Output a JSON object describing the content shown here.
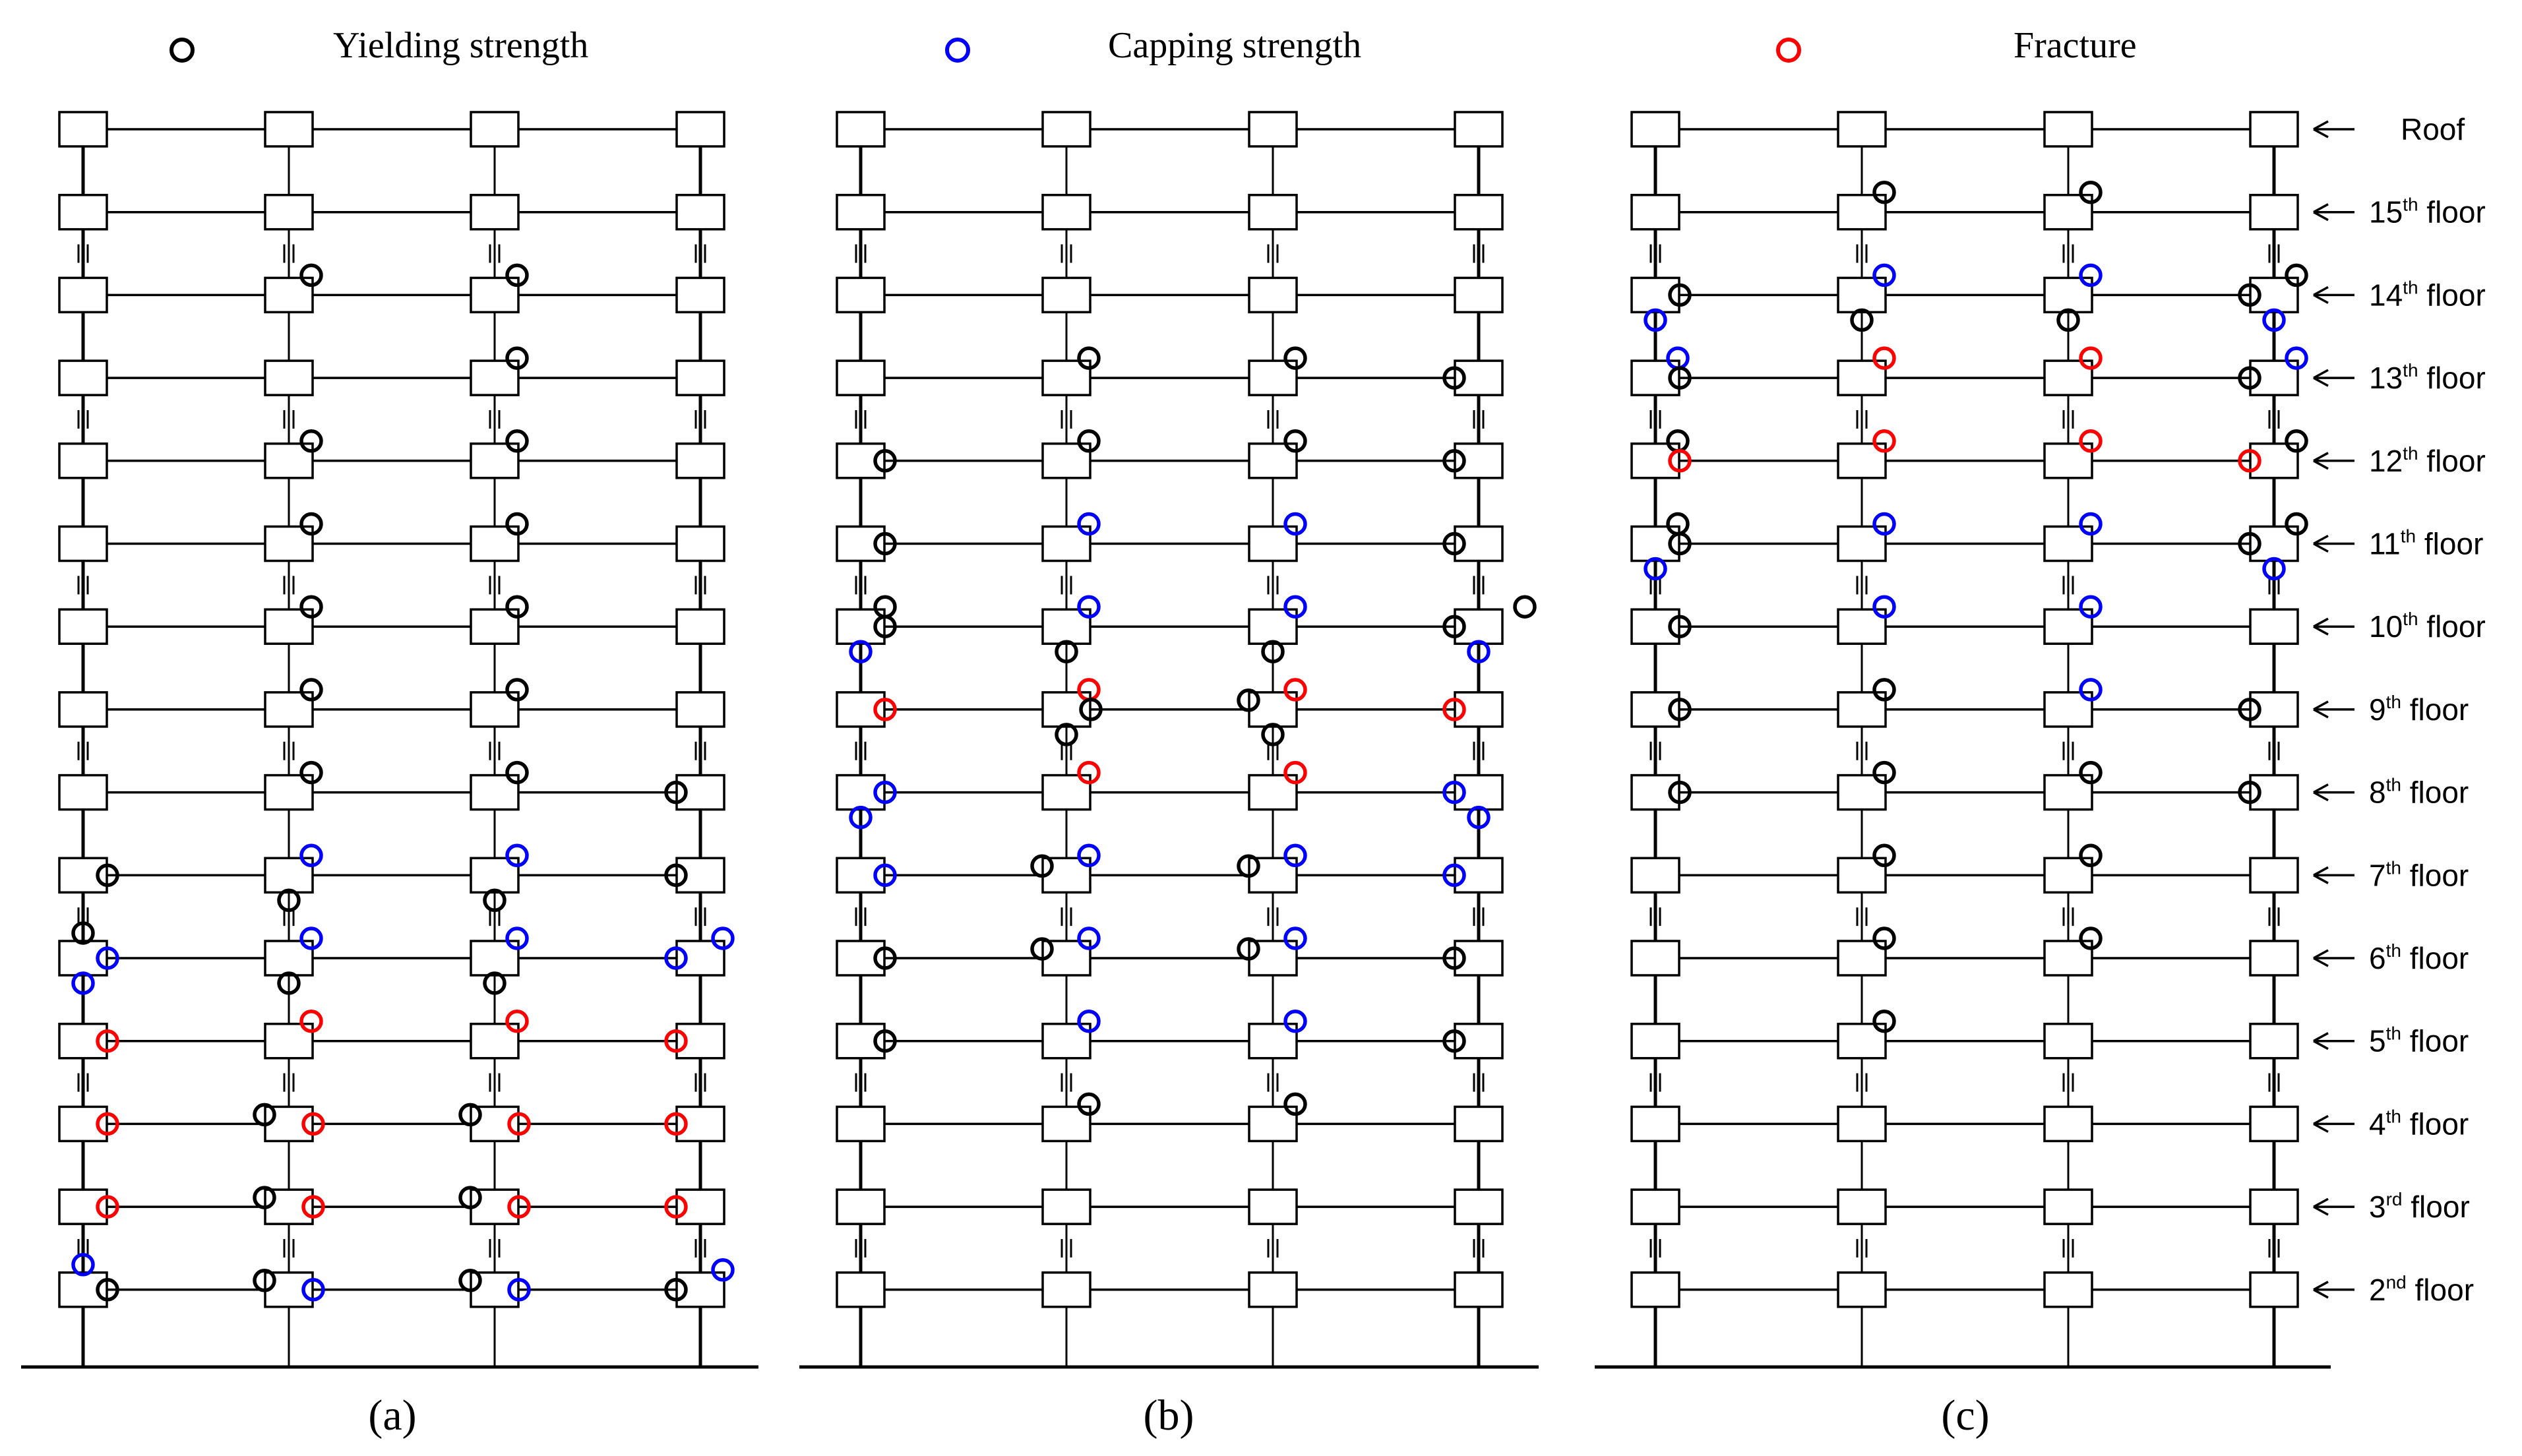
{
  "legend": {
    "yield": {
      "label": "Yielding strength",
      "color": "#000000"
    },
    "capping": {
      "label": "Capping strength",
      "color": "#0000ff"
    },
    "fracture": {
      "label": "Fracture",
      "color": "#ff0000"
    }
  },
  "captions": [
    "(a)",
    "(b)",
    "(c)"
  ],
  "floor_labels": [
    {
      "base": "Roof",
      "sup": ""
    },
    {
      "base": "15",
      "sup": "th",
      "suffix": " floor"
    },
    {
      "base": "14",
      "sup": "th",
      "suffix": " floor"
    },
    {
      "base": "13",
      "sup": "th",
      "suffix": " floor"
    },
    {
      "base": "12",
      "sup": "th",
      "suffix": " floor"
    },
    {
      "base": "11",
      "sup": "th",
      "suffix": " floor"
    },
    {
      "base": "10",
      "sup": "th",
      "suffix": " floor"
    },
    {
      "base": "9",
      "sup": "th",
      "suffix": " floor"
    },
    {
      "base": "8",
      "sup": "th",
      "suffix": " floor"
    },
    {
      "base": "7",
      "sup": "th",
      "suffix": " floor"
    },
    {
      "base": "6",
      "sup": "th",
      "suffix": " floor"
    },
    {
      "base": "5",
      "sup": "th",
      "suffix": " floor"
    },
    {
      "base": "4",
      "sup": "th",
      "suffix": " floor"
    },
    {
      "base": "3",
      "sup": "rd",
      "suffix": " floor"
    },
    {
      "base": "2",
      "sup": "nd",
      "suffix": " floor"
    }
  ],
  "hinge_positions": "each hinge: [floor index 0=Roof..14=2nd floor, column 0-3, position code: BR=beam end right of joint, BL=beam end left, CA=column above joint, CB=column below joint, AR=right of joint at column above beam, type y/c/f]",
  "frames": [
    {
      "id": "a",
      "hinges": [
        [
          2,
          1,
          "AR",
          "y"
        ],
        [
          2,
          2,
          "AR",
          "y"
        ],
        [
          3,
          2,
          "AR",
          "y"
        ],
        [
          4,
          1,
          "AR",
          "y"
        ],
        [
          4,
          2,
          "AR",
          "y"
        ],
        [
          5,
          1,
          "AR",
          "y"
        ],
        [
          5,
          2,
          "AR",
          "y"
        ],
        [
          6,
          1,
          "AR",
          "y"
        ],
        [
          6,
          2,
          "AR",
          "y"
        ],
        [
          7,
          1,
          "AR",
          "y"
        ],
        [
          7,
          2,
          "AR",
          "y"
        ],
        [
          8,
          1,
          "AR",
          "y"
        ],
        [
          8,
          2,
          "AR",
          "y"
        ],
        [
          8,
          3,
          "BL",
          "y"
        ],
        [
          9,
          0,
          "BR",
          "y"
        ],
        [
          9,
          1,
          "AR",
          "c"
        ],
        [
          9,
          1,
          "CB",
          "y"
        ],
        [
          9,
          2,
          "AR",
          "c"
        ],
        [
          9,
          2,
          "CB",
          "y"
        ],
        [
          9,
          3,
          "BL",
          "y"
        ],
        [
          10,
          0,
          "CA",
          "y"
        ],
        [
          10,
          0,
          "BR",
          "c"
        ],
        [
          10,
          0,
          "CB",
          "c"
        ],
        [
          10,
          1,
          "AR",
          "c"
        ],
        [
          10,
          1,
          "CB",
          "y"
        ],
        [
          10,
          2,
          "AR",
          "c"
        ],
        [
          10,
          2,
          "CB",
          "y"
        ],
        [
          10,
          3,
          "BL",
          "c"
        ],
        [
          10,
          3,
          "AR",
          "c"
        ],
        [
          11,
          0,
          "BR",
          "f"
        ],
        [
          11,
          1,
          "AR",
          "f"
        ],
        [
          11,
          2,
          "AR",
          "f"
        ],
        [
          11,
          3,
          "BL",
          "f"
        ],
        [
          12,
          0,
          "BR",
          "f"
        ],
        [
          12,
          1,
          "BR",
          "f"
        ],
        [
          12,
          1,
          "BL2",
          "y"
        ],
        [
          12,
          2,
          "BR",
          "f"
        ],
        [
          12,
          2,
          "BL2",
          "y"
        ],
        [
          12,
          3,
          "BL",
          "f"
        ],
        [
          13,
          0,
          "BR",
          "f"
        ],
        [
          13,
          1,
          "BR",
          "f"
        ],
        [
          13,
          1,
          "BL2",
          "y"
        ],
        [
          13,
          2,
          "BR",
          "f"
        ],
        [
          13,
          2,
          "BL2",
          "y"
        ],
        [
          13,
          3,
          "BL",
          "f"
        ],
        [
          14,
          0,
          "CA",
          "c"
        ],
        [
          14,
          0,
          "BR",
          "y"
        ],
        [
          14,
          1,
          "BR",
          "c"
        ],
        [
          14,
          1,
          "BL2",
          "y"
        ],
        [
          14,
          2,
          "BR",
          "c"
        ],
        [
          14,
          2,
          "BL2",
          "y"
        ],
        [
          14,
          3,
          "BL",
          "y"
        ],
        [
          14,
          3,
          "AR",
          "c"
        ]
      ]
    },
    {
      "id": "b",
      "hinges": [
        [
          3,
          1,
          "AR",
          "y"
        ],
        [
          3,
          2,
          "AR",
          "y"
        ],
        [
          3,
          3,
          "BL",
          "y"
        ],
        [
          4,
          0,
          "BR",
          "y"
        ],
        [
          4,
          1,
          "AR",
          "y"
        ],
        [
          4,
          2,
          "AR",
          "y"
        ],
        [
          4,
          3,
          "BL",
          "y"
        ],
        [
          5,
          0,
          "BR",
          "y"
        ],
        [
          5,
          1,
          "AR",
          "c"
        ],
        [
          5,
          2,
          "AR",
          "c"
        ],
        [
          5,
          3,
          "BL",
          "y"
        ],
        [
          6,
          0,
          "BR",
          "y"
        ],
        [
          6,
          0,
          "BR2",
          "y"
        ],
        [
          6,
          0,
          "CB",
          "c"
        ],
        [
          6,
          1,
          "AR",
          "c"
        ],
        [
          6,
          1,
          "CB",
          "y"
        ],
        [
          6,
          2,
          "AR",
          "c"
        ],
        [
          6,
          2,
          "CB",
          "y"
        ],
        [
          6,
          3,
          "BL",
          "y"
        ],
        [
          6,
          3,
          "AR2",
          "y"
        ],
        [
          6,
          3,
          "CB",
          "c"
        ],
        [
          7,
          0,
          "BR",
          "f"
        ],
        [
          7,
          1,
          "AR",
          "f"
        ],
        [
          7,
          1,
          "BR",
          "y"
        ],
        [
          7,
          1,
          "CB",
          "y"
        ],
        [
          7,
          2,
          "AR",
          "f"
        ],
        [
          7,
          2,
          "BL2",
          "y"
        ],
        [
          7,
          2,
          "CB",
          "y"
        ],
        [
          7,
          3,
          "BL",
          "f"
        ],
        [
          8,
          0,
          "BR",
          "c"
        ],
        [
          8,
          0,
          "CB",
          "c"
        ],
        [
          8,
          1,
          "AR",
          "f"
        ],
        [
          8,
          2,
          "AR",
          "f"
        ],
        [
          8,
          3,
          "BL",
          "c"
        ],
        [
          8,
          3,
          "CB",
          "c"
        ],
        [
          9,
          0,
          "BR",
          "c"
        ],
        [
          9,
          1,
          "AR",
          "c"
        ],
        [
          9,
          1,
          "BL2",
          "y"
        ],
        [
          9,
          2,
          "AR",
          "c"
        ],
        [
          9,
          2,
          "BL2",
          "y"
        ],
        [
          9,
          3,
          "BL",
          "c"
        ],
        [
          10,
          0,
          "BR",
          "y"
        ],
        [
          10,
          1,
          "AR",
          "c"
        ],
        [
          10,
          1,
          "BL2",
          "y"
        ],
        [
          10,
          2,
          "AR",
          "c"
        ],
        [
          10,
          2,
          "BL2",
          "y"
        ],
        [
          10,
          3,
          "BL",
          "y"
        ],
        [
          11,
          0,
          "BR",
          "y"
        ],
        [
          11,
          1,
          "AR",
          "c"
        ],
        [
          11,
          2,
          "AR",
          "c"
        ],
        [
          11,
          3,
          "BL",
          "y"
        ],
        [
          12,
          1,
          "AR",
          "y"
        ],
        [
          12,
          2,
          "AR",
          "y"
        ]
      ]
    },
    {
      "id": "c",
      "hinges": [
        [
          1,
          1,
          "AR",
          "y"
        ],
        [
          1,
          2,
          "AR",
          "y"
        ],
        [
          2,
          0,
          "BR",
          "y"
        ],
        [
          2,
          0,
          "CB",
          "c"
        ],
        [
          2,
          1,
          "AR",
          "c"
        ],
        [
          2,
          1,
          "CB",
          "y"
        ],
        [
          2,
          2,
          "AR",
          "c"
        ],
        [
          2,
          2,
          "CB",
          "y"
        ],
        [
          2,
          3,
          "BL",
          "y"
        ],
        [
          2,
          3,
          "AR",
          "y"
        ],
        [
          2,
          3,
          "CB",
          "c"
        ],
        [
          3,
          0,
          "AR",
          "c"
        ],
        [
          3,
          0,
          "BR",
          "y"
        ],
        [
          3,
          1,
          "AR",
          "f"
        ],
        [
          3,
          2,
          "AR",
          "f"
        ],
        [
          3,
          3,
          "BL",
          "y"
        ],
        [
          3,
          3,
          "AR",
          "c"
        ],
        [
          4,
          0,
          "AR",
          "y"
        ],
        [
          4,
          0,
          "BR",
          "f"
        ],
        [
          4,
          1,
          "AR",
          "f"
        ],
        [
          4,
          2,
          "AR",
          "f"
        ],
        [
          4,
          3,
          "BL",
          "f"
        ],
        [
          4,
          3,
          "AR",
          "y"
        ],
        [
          5,
          0,
          "AR",
          "y"
        ],
        [
          5,
          0,
          "BR",
          "y"
        ],
        [
          5,
          0,
          "CB",
          "c"
        ],
        [
          5,
          1,
          "AR",
          "c"
        ],
        [
          5,
          2,
          "AR",
          "c"
        ],
        [
          5,
          3,
          "BL",
          "y"
        ],
        [
          5,
          3,
          "AR",
          "y"
        ],
        [
          5,
          3,
          "CB",
          "c"
        ],
        [
          6,
          0,
          "BR",
          "y"
        ],
        [
          6,
          1,
          "AR",
          "c"
        ],
        [
          6,
          2,
          "AR",
          "c"
        ],
        [
          7,
          0,
          "BR",
          "y"
        ],
        [
          7,
          1,
          "AR",
          "y"
        ],
        [
          7,
          2,
          "AR",
          "c"
        ],
        [
          7,
          3,
          "BL",
          "y"
        ],
        [
          8,
          0,
          "BR",
          "y"
        ],
        [
          8,
          1,
          "AR",
          "y"
        ],
        [
          8,
          2,
          "AR",
          "y"
        ],
        [
          8,
          3,
          "BL",
          "y"
        ],
        [
          9,
          1,
          "AR",
          "y"
        ],
        [
          9,
          2,
          "AR",
          "y"
        ],
        [
          10,
          1,
          "AR",
          "y"
        ],
        [
          10,
          2,
          "AR",
          "y"
        ],
        [
          11,
          1,
          "AR",
          "y"
        ]
      ]
    }
  ]
}
